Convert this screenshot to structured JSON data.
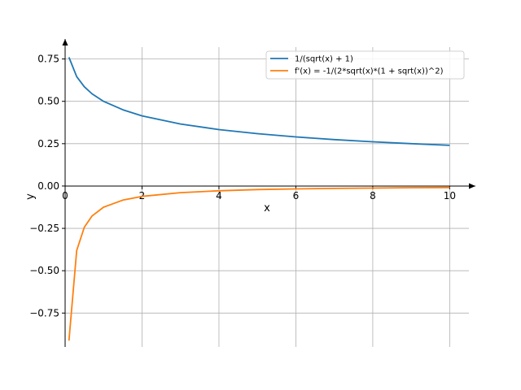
{
  "chart_data": {
    "type": "line",
    "title": "",
    "xlabel": "x",
    "ylabel": "y",
    "xlim": [
      0,
      10.5
    ],
    "ylim": [
      -0.95,
      0.82
    ],
    "grid": true,
    "legend_position": "top-right",
    "x_ticks": [
      0,
      2,
      4,
      6,
      8,
      10
    ],
    "x_tick_labels": [
      "0",
      "2",
      "4",
      "6",
      "8",
      "10"
    ],
    "y_ticks": [
      0.75,
      0.5,
      0.25,
      0.0,
      -0.25,
      -0.5,
      -0.75
    ],
    "y_tick_labels": [
      "0.75",
      "0.50",
      "0.25",
      "0.00",
      "−0.25",
      "−0.50",
      "−0.75"
    ],
    "x": [
      0.1,
      0.3,
      0.5,
      0.7,
      1.0,
      1.5,
      2,
      3,
      4,
      5,
      6,
      7,
      8,
      9,
      10
    ],
    "series": [
      {
        "name": "1/(sqrt(x) + 1)",
        "color": "#1f77b4",
        "values": [
          0.76,
          0.646,
          0.586,
          0.544,
          0.5,
          0.45,
          0.414,
          0.366,
          0.333,
          0.309,
          0.29,
          0.274,
          0.261,
          0.25,
          0.24
        ]
      },
      {
        "name": "f'(x) = -1/(2*sqrt(x)*(1 + sqrt(x))^2)",
        "color": "#ff7f0e",
        "values": [
          -0.913,
          -0.381,
          -0.243,
          -0.177,
          -0.125,
          -0.083,
          -0.061,
          -0.039,
          -0.028,
          -0.021,
          -0.017,
          -0.014,
          -0.012,
          -0.01,
          -0.009
        ]
      }
    ]
  }
}
